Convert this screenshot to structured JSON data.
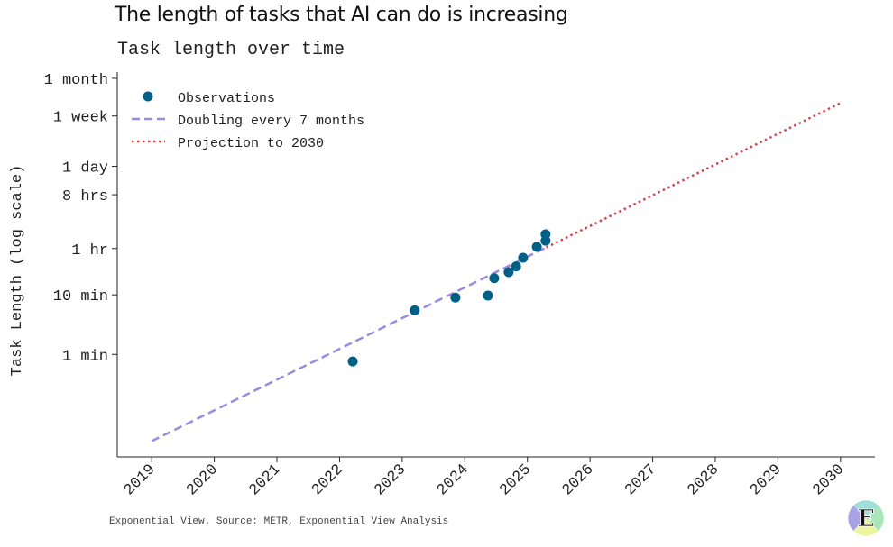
{
  "title": "The length of tasks that AI can do is increasing",
  "subtitle": "Task length over time",
  "footer": "Exponential View. Source: METR, Exponential View Analysis",
  "logo_letter": "E",
  "chart_data": {
    "type": "scatter",
    "ylabel": "Task Length (log scale)",
    "xlabel": "",
    "y_scale": "log",
    "y_unit": "minutes",
    "xlim": [
      2018.45,
      2030.55
    ],
    "ylim_minutes": [
      0.019,
      55000
    ],
    "grid": false,
    "legend_position": "top-left",
    "x_ticks": [
      2019,
      2020,
      2021,
      2022,
      2023,
      2024,
      2025,
      2026,
      2027,
      2028,
      2029,
      2030
    ],
    "y_ticks": [
      {
        "label": "1 min",
        "minutes": 1
      },
      {
        "label": "10 min",
        "minutes": 10
      },
      {
        "label": "1 hr",
        "minutes": 60
      },
      {
        "label": "8 hrs",
        "minutes": 480
      },
      {
        "label": "1 day",
        "minutes": 1440
      },
      {
        "label": "1 week",
        "minutes": 10080
      },
      {
        "label": "1 month",
        "minutes": 43200
      }
    ],
    "series": [
      {
        "name": "Observations",
        "kind": "scatter",
        "color": "#005f87",
        "points": [
          {
            "x": 2022.21,
            "y": 0.76
          },
          {
            "x": 2023.2,
            "y": 5.5
          },
          {
            "x": 2023.85,
            "y": 9
          },
          {
            "x": 2024.37,
            "y": 9.7
          },
          {
            "x": 2024.47,
            "y": 19
          },
          {
            "x": 2024.7,
            "y": 24
          },
          {
            "x": 2024.82,
            "y": 30
          },
          {
            "x": 2024.93,
            "y": 42
          },
          {
            "x": 2025.15,
            "y": 64
          },
          {
            "x": 2025.29,
            "y": 81
          },
          {
            "x": 2025.29,
            "y": 104
          }
        ]
      },
      {
        "name": "Doubling every 7 months",
        "kind": "trend",
        "color": "#9b8ade",
        "x_start": 2019,
        "x_end": 2025.3,
        "y_at_start": 0.035,
        "doubling_months": 7
      },
      {
        "name": "Projection to 2030",
        "kind": "projection",
        "color": "#d0484e",
        "x_start": 2025.3,
        "x_end": 2030,
        "y_at_start": 0.035,
        "start_ref": 2019,
        "doubling_months": 7
      }
    ]
  }
}
